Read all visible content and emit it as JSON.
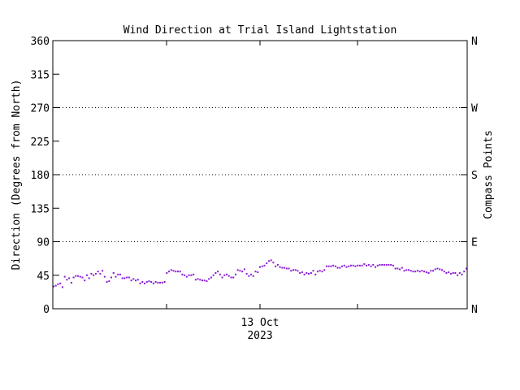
{
  "chart_data": {
    "type": "scatter",
    "title": "Wind Direction at Trial Island Lightstation",
    "ylabel": "Direction (Degrees from North)",
    "y2label": "Compass Points",
    "xlabel_date": "13 Oct",
    "xlabel_year": "2023",
    "ylim": [
      0,
      360
    ],
    "xlim": [
      0,
      1
    ],
    "yticks": [
      "0",
      "45",
      "90",
      "135",
      "180",
      "225",
      "270",
      "315",
      "360"
    ],
    "ytick_values": [
      0,
      45,
      90,
      135,
      180,
      225,
      270,
      315,
      360
    ],
    "compass_ticks": [
      "N",
      "E",
      "S",
      "W",
      "N"
    ],
    "compass_values": [
      0,
      90,
      180,
      270,
      360
    ],
    "grid_lines": [
      90,
      180,
      270
    ],
    "point_color": "#8a1ad6",
    "values": [
      30,
      31,
      33,
      34,
      29,
      43,
      39,
      41,
      35,
      42,
      44,
      44,
      43,
      42,
      38,
      45,
      41,
      47,
      45,
      47,
      50,
      47,
      51,
      43,
      36,
      37,
      42,
      48,
      43,
      46,
      46,
      41,
      41,
      42,
      42,
      38,
      40,
      38,
      39,
      34,
      36,
      34,
      36,
      37,
      36,
      34,
      36,
      35,
      35,
      35,
      36,
      48,
      50,
      52,
      51,
      50,
      50,
      50,
      46,
      45,
      43,
      45,
      45,
      46,
      39,
      40,
      39,
      38,
      38,
      37,
      40,
      42,
      45,
      48,
      50,
      46,
      42,
      45,
      46,
      44,
      42,
      42,
      46,
      52,
      51,
      50,
      53,
      47,
      44,
      46,
      44,
      50,
      49,
      56,
      57,
      58,
      61,
      64,
      65,
      62,
      57,
      59,
      56,
      55,
      55,
      54,
      54,
      51,
      52,
      52,
      51,
      48,
      49,
      46,
      48,
      47,
      48,
      51,
      46,
      50,
      51,
      50,
      52,
      57,
      57,
      57,
      58,
      57,
      55,
      55,
      57,
      58,
      56,
      57,
      58,
      58,
      57,
      58,
      58,
      58,
      60,
      58,
      59,
      57,
      59,
      56,
      58,
      59,
      59,
      59,
      59,
      59,
      59,
      58,
      54,
      54,
      53,
      55,
      51,
      52,
      52,
      51,
      50,
      50,
      51,
      50,
      51,
      50,
      49,
      48,
      51,
      51,
      53,
      54,
      53,
      52,
      50,
      48,
      49,
      47,
      48,
      48,
      45,
      48,
      46,
      50,
      54
    ]
  }
}
